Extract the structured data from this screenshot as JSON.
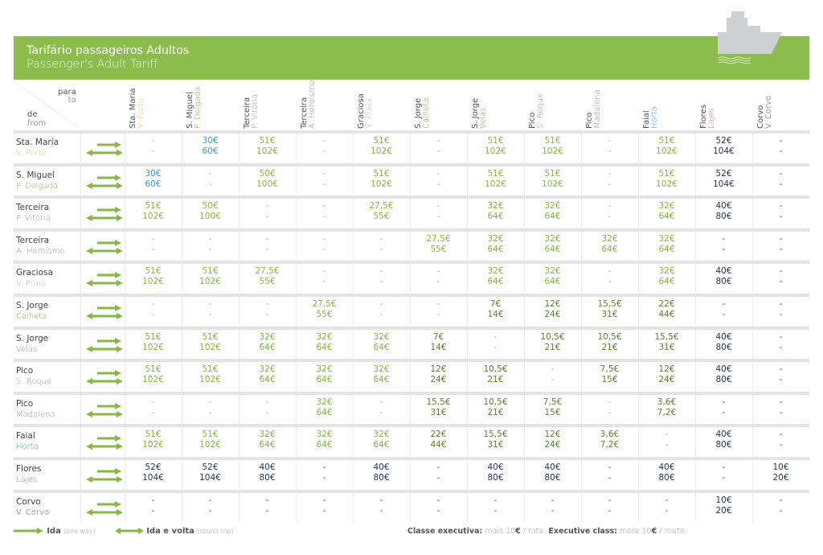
{
  "banner": {
    "title_pt": "Tarifário passageiros Adultos",
    "title_en": "Passenger's Adult Tariff",
    "color": "#8cbd4c",
    "icon": "ship-icon"
  },
  "corner": {
    "to_pt": "para",
    "to_en": "to",
    "from_pt": "de",
    "from_en": "from"
  },
  "colors": {
    "light_green": "#86b843",
    "olive_green": "#5e8330",
    "blue": "#3f9ad2",
    "navy": "#283552",
    "dash": "#aaaaaa"
  },
  "columns": [
    {
      "island": "Sta. Maria",
      "city": "V. Porto",
      "city_color": "#e8c46a"
    },
    {
      "island": "S. Miguel",
      "city": "P. Delgada",
      "city_color": "#7fb565"
    },
    {
      "island": "Terceira",
      "city": "P. Vitória",
      "city_color": "#999999"
    },
    {
      "island": "Terceira",
      "city": "A. Heroísmo",
      "city_color": "#999999"
    },
    {
      "island": "Graciosa",
      "city": "V. Praia",
      "city_color": "#bbbbbb"
    },
    {
      "island": "S. Jorge",
      "city": "Calheta",
      "city_color": "#b08c5a"
    },
    {
      "island": "S. Jorge",
      "city": "Velas",
      "city_color": "#b08c5a"
    },
    {
      "island": "Pico",
      "city": "S. Roque",
      "city_color": "#999999"
    },
    {
      "island": "Pico",
      "city": "Madalena",
      "city_color": "#999999"
    },
    {
      "island": "Faial",
      "city": "Horta",
      "city_color": "#3f9ad2"
    },
    {
      "island": "Flores",
      "city": "Lajes",
      "city_color": "#d9679a"
    },
    {
      "island": "Corvo",
      "city": "V. Corvo",
      "city_color": "#555555"
    }
  ],
  "rows": [
    {
      "island": "Sta. Maria",
      "city": "V. Porto",
      "city_color": "#e8c46a",
      "cells": [
        [
          "-",
          "-",
          "d"
        ],
        [
          "30€",
          "60€",
          "b"
        ],
        [
          "51€",
          "102€",
          "g"
        ],
        [
          "-",
          "-",
          "d"
        ],
        [
          "51€",
          "102€",
          "g"
        ],
        [
          "-",
          "-",
          "d"
        ],
        [
          "51€",
          "102€",
          "g"
        ],
        [
          "51€",
          "102€",
          "g"
        ],
        [
          "-",
          "-",
          "d"
        ],
        [
          "51€",
          "102€",
          "g"
        ],
        [
          "52€",
          "104€",
          "n"
        ],
        [
          "-",
          "-",
          "dk"
        ]
      ]
    },
    {
      "island": "S. Miguel",
      "city": "P. Delgada",
      "city_color": "#7fb565",
      "cells": [
        [
          "30€",
          "60€",
          "b"
        ],
        [
          "-",
          "-",
          "d"
        ],
        [
          "50€",
          "100€",
          "g"
        ],
        [
          "-",
          "-",
          "d"
        ],
        [
          "51€",
          "102€",
          "g"
        ],
        [
          "-",
          "-",
          "d"
        ],
        [
          "51€",
          "102€",
          "g"
        ],
        [
          "51€",
          "102€",
          "g"
        ],
        [
          "-",
          "-",
          "d"
        ],
        [
          "51€",
          "102€",
          "g"
        ],
        [
          "52€",
          "104€",
          "n"
        ],
        [
          "-",
          "-",
          "dk"
        ]
      ]
    },
    {
      "island": "Terceira",
      "city": "P. Vitória",
      "city_color": "#999999",
      "cells": [
        [
          "51€",
          "102€",
          "g"
        ],
        [
          "50€",
          "100€",
          "g"
        ],
        [
          "-",
          "-",
          "d"
        ],
        [
          "-",
          "-",
          "d"
        ],
        [
          "27,5€",
          "55€",
          "g"
        ],
        [
          "-",
          "-",
          "d"
        ],
        [
          "32€",
          "64€",
          "g"
        ],
        [
          "32€",
          "64€",
          "g"
        ],
        [
          "-",
          "-",
          "d"
        ],
        [
          "32€",
          "64€",
          "g"
        ],
        [
          "40€",
          "80€",
          "n"
        ],
        [
          "-",
          "-",
          "dk"
        ]
      ]
    },
    {
      "island": "Terceira",
      "city": "A. Heroísmo",
      "city_color": "#999999",
      "cells": [
        [
          "-",
          "-",
          "d"
        ],
        [
          "-",
          "-",
          "d"
        ],
        [
          "-",
          "-",
          "d"
        ],
        [
          "-",
          "-",
          "d"
        ],
        [
          "-",
          "-",
          "d"
        ],
        [
          "27,5€",
          "55€",
          "g"
        ],
        [
          "32€",
          "64€",
          "g"
        ],
        [
          "32€",
          "64€",
          "g"
        ],
        [
          "32€",
          "64€",
          "g"
        ],
        [
          "32€",
          "64€",
          "g"
        ],
        [
          "-",
          "-",
          "dk"
        ],
        [
          "-",
          "-",
          "dk"
        ]
      ]
    },
    {
      "island": "Graciosa",
      "city": "V. Praia",
      "city_color": "#bbbbbb",
      "cells": [
        [
          "51€",
          "102€",
          "g"
        ],
        [
          "51€",
          "102€",
          "g"
        ],
        [
          "27,5€",
          "55€",
          "g"
        ],
        [
          "-",
          "-",
          "d"
        ],
        [
          "-",
          "-",
          "d"
        ],
        [
          "-",
          "-",
          "d"
        ],
        [
          "32€",
          "64€",
          "g"
        ],
        [
          "32€",
          "64€",
          "g"
        ],
        [
          "-",
          "-",
          "d"
        ],
        [
          "32€",
          "64€",
          "g"
        ],
        [
          "40€",
          "80€",
          "n"
        ],
        [
          "-",
          "-",
          "dk"
        ]
      ]
    },
    {
      "island": "S. Jorge",
      "city": "Calheta",
      "city_color": "#b08c5a",
      "cells": [
        [
          "-",
          "-",
          "d"
        ],
        [
          "-",
          "-",
          "d"
        ],
        [
          "-",
          "-",
          "d"
        ],
        [
          "27,5€",
          "55€",
          "g"
        ],
        [
          "-",
          "-",
          "d"
        ],
        [
          "-",
          "-",
          "d"
        ],
        [
          "7€",
          "14€",
          "o"
        ],
        [
          "12€",
          "24€",
          "o"
        ],
        [
          "15,5€",
          "31€",
          "o"
        ],
        [
          "22€",
          "44€",
          "o"
        ],
        [
          "-",
          "-",
          "dk"
        ],
        [
          "-",
          "-",
          "dk"
        ]
      ]
    },
    {
      "island": "S. Jorge",
      "city": "Velas",
      "city_color": "#b08c5a",
      "cells": [
        [
          "51€",
          "102€",
          "g"
        ],
        [
          "51€",
          "102€",
          "g"
        ],
        [
          "32€",
          "64€",
          "g"
        ],
        [
          "32€",
          "64€",
          "g"
        ],
        [
          "32€",
          "64€",
          "g"
        ],
        [
          "7€",
          "14€",
          "o"
        ],
        [
          "-",
          "-",
          "d"
        ],
        [
          "10,5€",
          "21€",
          "o"
        ],
        [
          "10,5€",
          "21€",
          "o"
        ],
        [
          "15,5€",
          "31€",
          "o"
        ],
        [
          "40€",
          "80€",
          "n"
        ],
        [
          "-",
          "-",
          "dk"
        ]
      ]
    },
    {
      "island": "Pico",
      "city": "S. Roque",
      "city_color": "#999999",
      "cells": [
        [
          "51€",
          "102€",
          "g"
        ],
        [
          "51€",
          "102€",
          "g"
        ],
        [
          "32€",
          "64€",
          "g"
        ],
        [
          "32€",
          "64€",
          "g"
        ],
        [
          "32€",
          "64€",
          "g"
        ],
        [
          "12€",
          "24€",
          "o"
        ],
        [
          "10,5€",
          "21€",
          "o"
        ],
        [
          "-",
          "-",
          "d"
        ],
        [
          "7,5€",
          "15€",
          "o"
        ],
        [
          "12€",
          "24€",
          "o"
        ],
        [
          "40€",
          "80€",
          "n"
        ],
        [
          "-",
          "-",
          "dk"
        ]
      ]
    },
    {
      "island": "Pico",
      "city": "Madalena",
      "city_color": "#999999",
      "cells": [
        [
          "-",
          "-",
          "d"
        ],
        [
          "-",
          "-",
          "d"
        ],
        [
          "-",
          "-",
          "d"
        ],
        [
          "32€",
          "64€",
          "g"
        ],
        [
          "-",
          "-",
          "d"
        ],
        [
          "15,5€",
          "31€",
          "o"
        ],
        [
          "10,5€",
          "21€",
          "o"
        ],
        [
          "7,5€",
          "15€",
          "o"
        ],
        [
          "-",
          "-",
          "d"
        ],
        [
          "3,6€",
          "7,2€",
          "o"
        ],
        [
          "-",
          "-",
          "dk"
        ],
        [
          "-",
          "-",
          "dk"
        ]
      ]
    },
    {
      "island": "Faial",
      "city": "Horta",
      "city_color": "#3f9ad2",
      "cells": [
        [
          "51€",
          "102€",
          "g"
        ],
        [
          "51€",
          "102€",
          "g"
        ],
        [
          "32€",
          "64€",
          "g"
        ],
        [
          "32€",
          "64€",
          "g"
        ],
        [
          "32€",
          "64€",
          "g"
        ],
        [
          "22€",
          "44€",
          "o"
        ],
        [
          "15,5€",
          "31€",
          "o"
        ],
        [
          "12€",
          "24€",
          "o"
        ],
        [
          "3,6€",
          "7,2€",
          "o"
        ],
        [
          "-",
          "-",
          "d"
        ],
        [
          "40€",
          "80€",
          "n"
        ],
        [
          "-",
          "-",
          "dk"
        ]
      ]
    },
    {
      "island": "Flores",
      "city": "Lajes",
      "city_color": "#d9679a",
      "cells": [
        [
          "52€",
          "104€",
          "n"
        ],
        [
          "52€",
          "104€",
          "n"
        ],
        [
          "40€",
          "80€",
          "n"
        ],
        [
          "-",
          "-",
          "dk"
        ],
        [
          "40€",
          "80€",
          "n"
        ],
        [
          "-",
          "-",
          "dk"
        ],
        [
          "40€",
          "80€",
          "n"
        ],
        [
          "40€",
          "80€",
          "n"
        ],
        [
          "-",
          "-",
          "dk"
        ],
        [
          "40€",
          "80€",
          "n"
        ],
        [
          "-",
          "-",
          "dk"
        ],
        [
          "10€",
          "20€",
          "n"
        ]
      ]
    },
    {
      "island": "Corvo",
      "city": "V. Corvo",
      "city_color": "#555555",
      "cells": [
        [
          "-",
          "-",
          "dk"
        ],
        [
          "-",
          "-",
          "dk"
        ],
        [
          "-",
          "-",
          "dk"
        ],
        [
          "-",
          "-",
          "dk"
        ],
        [
          "-",
          "-",
          "dk"
        ],
        [
          "-",
          "-",
          "dk"
        ],
        [
          "-",
          "-",
          "dk"
        ],
        [
          "-",
          "-",
          "dk"
        ],
        [
          "-",
          "-",
          "dk"
        ],
        [
          "-",
          "-",
          "dk"
        ],
        [
          "10€",
          "20€",
          "n"
        ],
        [
          "-",
          "-",
          "dk"
        ]
      ]
    }
  ],
  "legend": {
    "one_way_pt": "Ida",
    "one_way_en": "(one way)",
    "round_trip_pt": "Ida e volta",
    "round_trip_en": "(round trip)"
  },
  "note": {
    "label_pt": "Classe executiva:",
    "text_pt": " mais 10",
    "euro_pt": "€",
    "rest_pt": " / rota.",
    "label_en": " Executive class:",
    "text_en": " more 10",
    "euro_en": "€",
    "rest_en": " / route."
  }
}
